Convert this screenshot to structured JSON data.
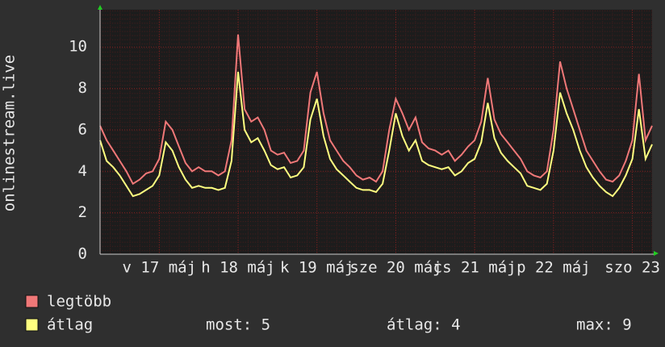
{
  "chart_data": {
    "type": "line",
    "y_label": "onlinestream.live",
    "x": [
      0,
      2,
      4,
      6,
      8,
      10,
      12,
      14,
      16,
      18,
      20,
      22,
      24,
      26,
      28,
      30,
      32,
      34,
      36,
      38,
      40,
      42,
      44,
      46,
      48,
      50,
      52,
      54,
      56,
      58,
      60,
      62,
      64,
      66,
      68,
      70,
      72,
      74,
      76,
      78,
      80,
      82,
      84,
      86,
      88,
      90,
      92,
      94,
      96,
      98,
      100,
      102,
      104,
      106,
      108,
      110,
      112,
      114,
      116,
      118,
      120,
      122,
      124,
      126,
      128,
      130,
      132,
      134,
      136,
      138,
      140,
      142,
      144,
      146,
      148,
      150,
      152,
      154,
      156,
      158,
      160,
      162,
      164,
      166,
      168
    ],
    "series": [
      {
        "name": "legtöbb",
        "color": "#f07878",
        "values": [
          6.2,
          5.5,
          5.0,
          4.5,
          4.0,
          3.4,
          3.6,
          3.9,
          4.0,
          4.6,
          6.4,
          6.0,
          5.2,
          4.4,
          4.0,
          4.2,
          4.0,
          4.0,
          3.8,
          4.0,
          5.5,
          10.6,
          7.0,
          6.4,
          6.6,
          6.0,
          5.0,
          4.8,
          4.9,
          4.4,
          4.5,
          5.0,
          7.8,
          8.8,
          6.8,
          5.5,
          5.0,
          4.5,
          4.2,
          3.8,
          3.6,
          3.7,
          3.5,
          4.0,
          6.0,
          7.5,
          6.8,
          6.0,
          6.6,
          5.4,
          5.1,
          5.0,
          4.8,
          5.0,
          4.5,
          4.8,
          5.2,
          5.5,
          6.4,
          8.5,
          6.5,
          5.8,
          5.4,
          5.0,
          4.6,
          4.0,
          3.8,
          3.7,
          4.0,
          6.0,
          9.3,
          8.0,
          7.0,
          6.0,
          5.0,
          4.5,
          4.0,
          3.6,
          3.5,
          3.8,
          4.5,
          5.5,
          8.7,
          5.5,
          6.2
        ]
      },
      {
        "name": "átlag",
        "color": "#ffff80",
        "values": [
          5.5,
          4.5,
          4.2,
          3.8,
          3.3,
          2.8,
          2.9,
          3.1,
          3.3,
          3.8,
          5.4,
          5.0,
          4.2,
          3.6,
          3.2,
          3.3,
          3.2,
          3.2,
          3.1,
          3.2,
          4.5,
          8.8,
          6.0,
          5.4,
          5.6,
          5.0,
          4.3,
          4.1,
          4.2,
          3.7,
          3.8,
          4.2,
          6.5,
          7.5,
          5.7,
          4.6,
          4.1,
          3.8,
          3.5,
          3.2,
          3.1,
          3.1,
          3.0,
          3.4,
          5.0,
          6.8,
          5.7,
          5.0,
          5.5,
          4.5,
          4.3,
          4.2,
          4.1,
          4.2,
          3.8,
          4.0,
          4.4,
          4.6,
          5.4,
          7.3,
          5.6,
          4.9,
          4.5,
          4.2,
          3.9,
          3.3,
          3.2,
          3.1,
          3.4,
          5.0,
          7.8,
          6.8,
          6.0,
          5.0,
          4.2,
          3.7,
          3.3,
          3.0,
          2.8,
          3.2,
          3.8,
          4.6,
          7.0,
          4.6,
          5.3
        ]
      }
    ],
    "xlim": [
      0,
      168
    ],
    "xticks": [
      {
        "value": 18,
        "label": "v 17 máj"
      },
      {
        "value": 42,
        "label": "h 18 máj"
      },
      {
        "value": 66,
        "label": "k 19 máj"
      },
      {
        "value": 90,
        "label": "sze 20 máj"
      },
      {
        "value": 114,
        "label": "cs 21 máj"
      },
      {
        "value": 138,
        "label": "p 22 máj"
      },
      {
        "value": 162,
        "label": "szo 23"
      }
    ],
    "ylim": [
      0,
      11.8
    ],
    "yticks": [
      0,
      2,
      4,
      6,
      8,
      10
    ],
    "grid": true,
    "stats": [
      "most: 5",
      "átlag: 4",
      "max: 9"
    ]
  }
}
